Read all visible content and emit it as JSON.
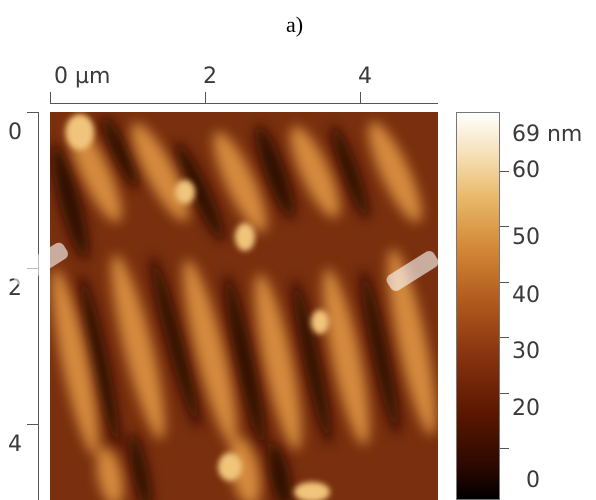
{
  "figure": {
    "panel_label": "a)"
  },
  "x_axis": {
    "tick_labels": [
      "0 µm",
      "2",
      "4"
    ]
  },
  "y_axis": {
    "tick_labels": [
      "0",
      "2",
      "4"
    ]
  },
  "colorbar": {
    "tick_labels": [
      "69 nm",
      "60",
      "50",
      "40",
      "30",
      "20",
      "0"
    ],
    "colors": [
      "#000000",
      "#5a1700",
      "#b45c1e",
      "#e9b86a",
      "#ffffff"
    ]
  }
}
